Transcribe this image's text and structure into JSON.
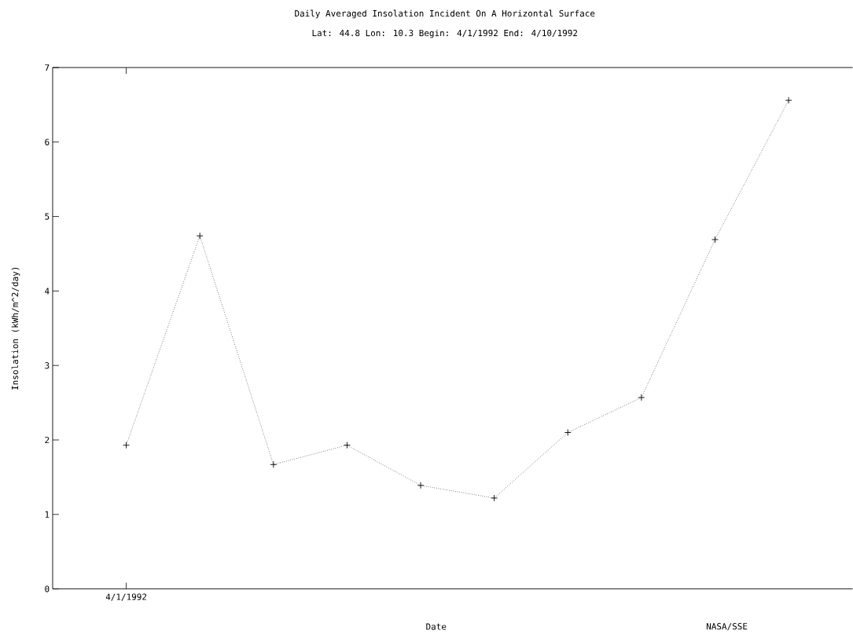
{
  "chart_data": {
    "type": "line",
    "title": "Daily Averaged Insolation Incident On A Horizontal Surface",
    "subtitle": "Lat: 44.8 Lon: 10.3  Begin: 4/1/1992  End: 4/10/1992",
    "xlabel": "Date",
    "ylabel": "Insolation (kWh/m^2/day)",
    "annotations": [
      "NASA/SSE"
    ],
    "categories": [
      "4/1/1992",
      null,
      null,
      null,
      null,
      null,
      null,
      null,
      null,
      null
    ],
    "series": [
      {
        "color": "#000000",
        "values": [
          1.93,
          4.74,
          1.67,
          1.93,
          1.39,
          1.22,
          2.1,
          2.57,
          4.69,
          6.56
        ]
      }
    ],
    "ylim": [
      0,
      7
    ],
    "yticks": [
      0,
      1,
      2,
      3,
      4,
      5,
      6,
      7
    ],
    "grid": false,
    "marker": "cross",
    "line_style": "dotted"
  }
}
